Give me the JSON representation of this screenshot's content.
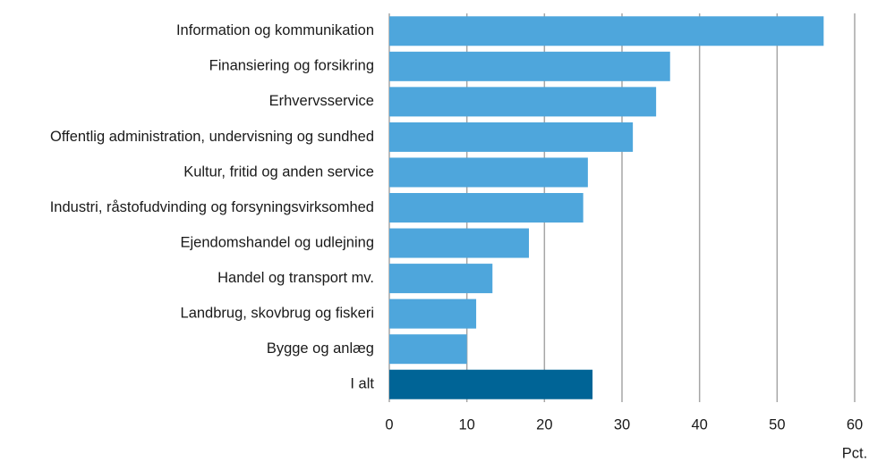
{
  "chart_data": {
    "type": "barh",
    "categories": [
      "Information og kommunikation",
      "Finansiering og forsikring",
      "Erhvervsservice",
      "Offentlig administration, undervisning og sundhed",
      "Kultur, fritid og anden service",
      "Industri, råstofudvinding og forsyningsvirksomhed",
      "Ejendomshandel og udlejning",
      "Handel og transport mv.",
      "Landbrug, skovbrug og fiskeri",
      "Bygge og anlæg",
      "I alt"
    ],
    "values": [
      56.0,
      36.2,
      34.4,
      31.4,
      25.6,
      25.0,
      18.0,
      13.3,
      11.2,
      10.0,
      26.2
    ],
    "colors": [
      "#4ea6dc",
      "#4ea6dc",
      "#4ea6dc",
      "#4ea6dc",
      "#4ea6dc",
      "#4ea6dc",
      "#4ea6dc",
      "#4ea6dc",
      "#4ea6dc",
      "#4ea6dc",
      "#006496"
    ],
    "x_label": "Pct.",
    "xlim": [
      0,
      60
    ],
    "xticks": [
      0,
      10,
      20,
      30,
      40,
      50,
      60
    ],
    "grid": true
  }
}
